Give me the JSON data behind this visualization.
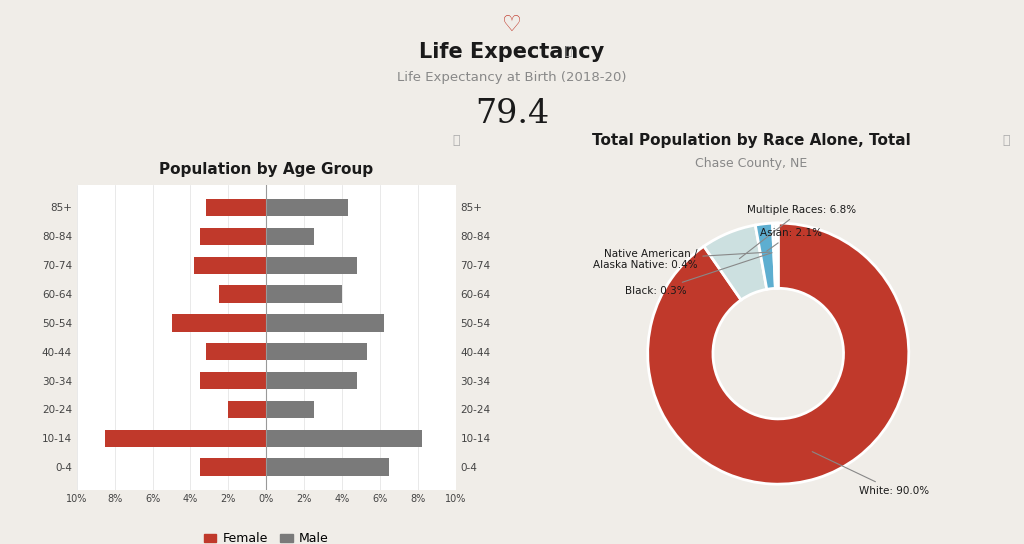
{
  "bg_color": "#f0ede8",
  "panel_color": "#ffffff",
  "title": "Life Expectancy",
  "subtitle": "Life Expectancy at Birth (2018-20)",
  "value": "79.4",
  "heart_color": "#c0392b",
  "pyramid_title": "Population by Age Group",
  "age_groups": [
    "0-4",
    "10-14",
    "20-24",
    "30-34",
    "40-44",
    "50-54",
    "60-64",
    "70-74",
    "80-84",
    "85+"
  ],
  "female": [
    3.5,
    8.5,
    2.0,
    3.5,
    3.2,
    5.0,
    2.5,
    3.8,
    3.5,
    3.2
  ],
  "male": [
    6.5,
    8.2,
    2.5,
    4.8,
    5.3,
    6.2,
    4.0,
    4.8,
    2.5,
    4.3
  ],
  "female_color": "#c0392b",
  "male_color": "#7a7a7a",
  "donut_title": "Total Population by Race Alone, Total",
  "donut_subtitle": "Chase County, NE",
  "donut_values": [
    90.0,
    6.8,
    2.1,
    0.4,
    0.3
  ],
  "donut_label_texts": [
    "White: 90.0%",
    "Multiple Races: 6.8%",
    "Asian: 2.1%",
    "Native American /\nAlaska Native: 0.4%",
    "Black: 0.3%"
  ],
  "donut_colors": [
    "#c0392b",
    "#cce0e0",
    "#5daed0",
    "#b8d8d8",
    "#a83030"
  ]
}
